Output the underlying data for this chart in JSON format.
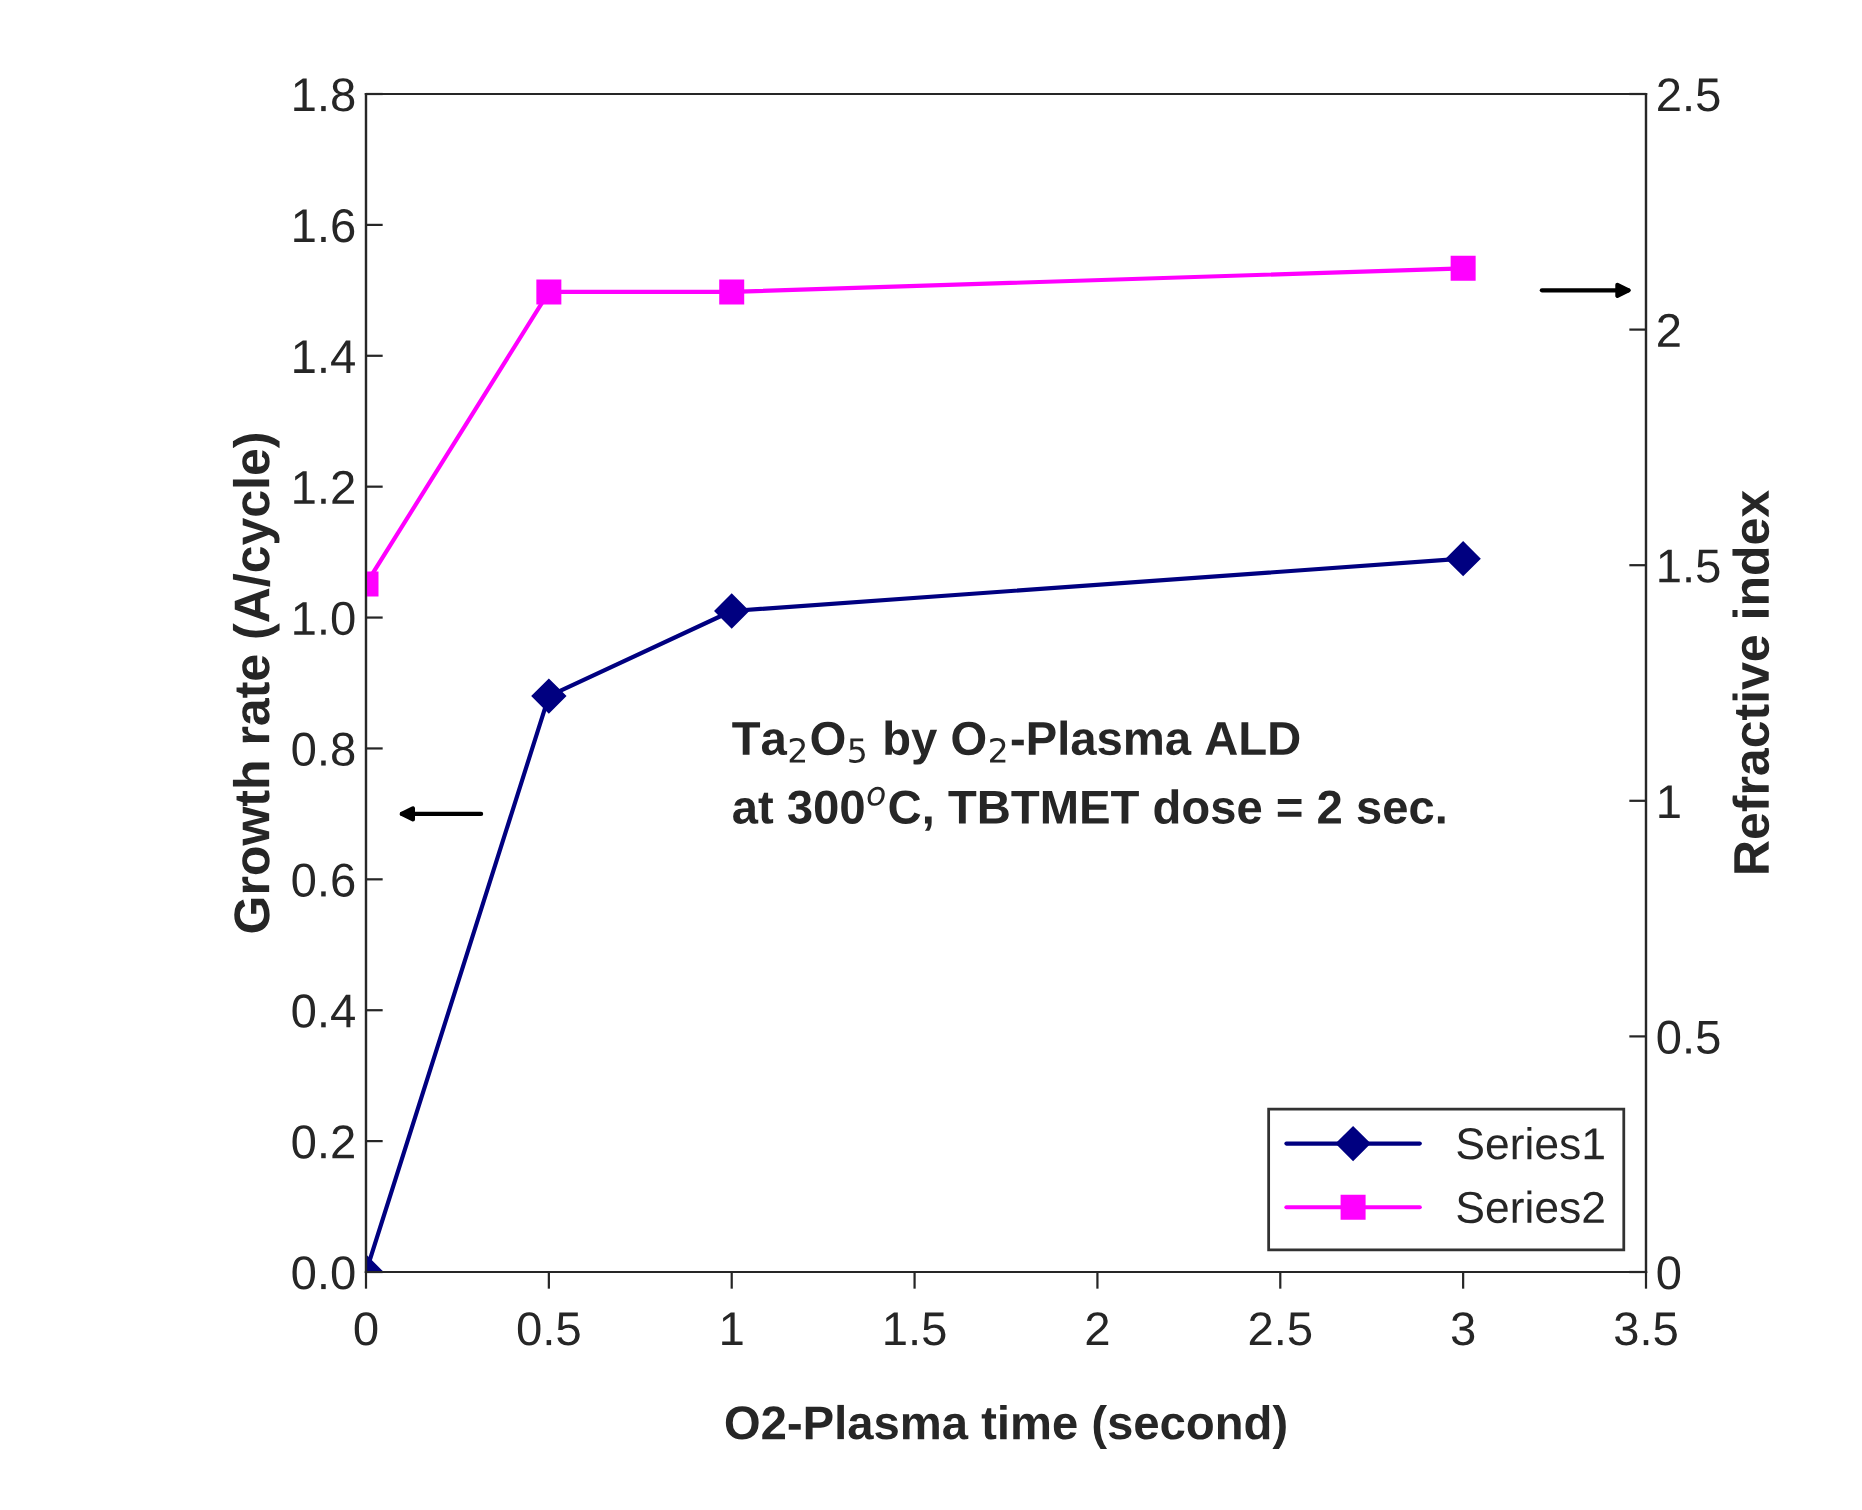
{
  "chart_data": {
    "type": "line",
    "xlabel": "O2-Plasma time (second)",
    "ylabel": "Growth rate (A/cycle)",
    "y2label": "Refractive index",
    "x": [
      0,
      0.5,
      1,
      3
    ],
    "series": [
      {
        "name": "Series1",
        "color": "#000080",
        "values": [
          0,
          0.88,
          1.01,
          1.09
        ],
        "marker": "diamond"
      },
      {
        "name": "Series2",
        "color": "#ff00ff",
        "values": [
          1.46,
          2.08,
          2.08,
          2.13
        ],
        "marker": "square",
        "axis": "y2"
      }
    ],
    "xlim": [
      0,
      3.5
    ],
    "xticks": [
      0,
      0.5,
      1,
      1.5,
      2,
      2.5,
      3,
      3.5
    ],
    "ylim": [
      0,
      1.8
    ],
    "yticks": [
      {
        "value": 0,
        "label": "0.0"
      },
      {
        "value": 0.2,
        "label": "0.2"
      },
      {
        "value": 0.4,
        "label": "0.4"
      },
      {
        "value": 0.6,
        "label": "0.6"
      },
      {
        "value": 0.8,
        "label": "0.8"
      },
      {
        "value": 1.0,
        "label": "1.0"
      },
      {
        "value": 1.2,
        "label": "1.2"
      },
      {
        "value": 1.4,
        "label": "1.4"
      },
      {
        "value": 1.6,
        "label": "1.6"
      },
      {
        "value": 1.8,
        "label": "1.8"
      }
    ],
    "y2lim": [
      0,
      2.5
    ],
    "y2ticks": [
      0,
      0.5,
      1,
      1.5,
      2,
      2.5
    ],
    "annotations": [
      "Ta$_{2}$O$_{5}$ by O$_{2}$-Plasma ALD",
      "at 300$^{o}$C, TBTMET dose = 2 sec."
    ],
    "legend": "bottom right",
    "grid": false,
    "line_style": "solid"
  }
}
